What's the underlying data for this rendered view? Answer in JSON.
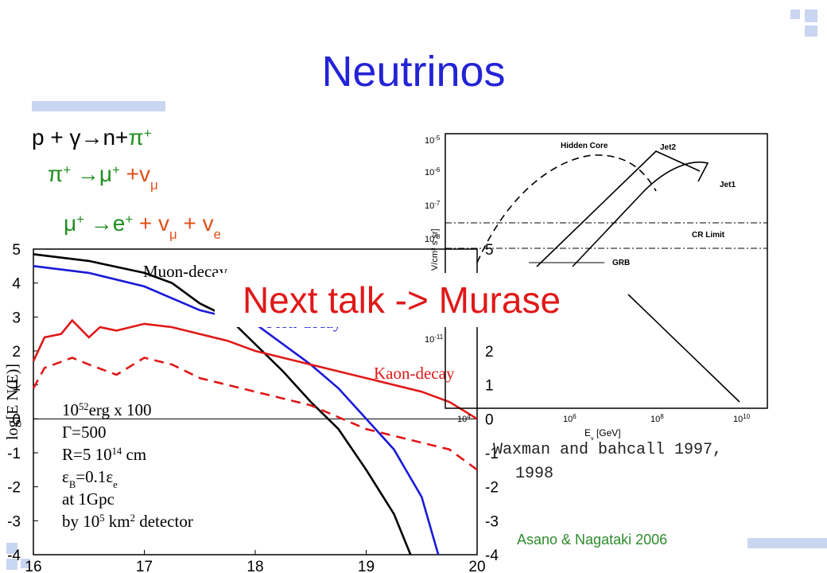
{
  "title": "Neutrinos",
  "equations": [
    [
      {
        "t": "p  + γ→n+",
        "c": "#000000"
      },
      {
        "t": "π",
        "c": "#1f8f1f"
      },
      {
        "t": "+",
        "s": "sup",
        "c": "#1f8f1f"
      }
    ],
    [
      {
        "t": "π",
        "c": "#1f8f1f"
      },
      {
        "t": "+",
        "s": "sup",
        "c": "#1f8f1f"
      },
      {
        "t": " →μ",
        "c": "#1f8f1f"
      },
      {
        "t": "+",
        "s": "sup",
        "c": "#1f8f1f"
      },
      {
        "t": "  +v",
        "c": "#e0501a"
      },
      {
        "t": "μ",
        "s": "sub",
        "c": "#e0501a"
      }
    ],
    [
      {
        "t": "μ",
        "c": "#1f8f1f"
      },
      {
        "t": "+",
        "s": "sup",
        "c": "#1f8f1f"
      },
      {
        "t": " →e",
        "c": "#1f8f1f"
      },
      {
        "t": "+",
        "s": "sup",
        "c": "#1f8f1f"
      },
      {
        "t": "  + v",
        "c": "#e0501a"
      },
      {
        "t": "μ",
        "s": "sub",
        "c": "#e0501a"
      },
      {
        "t": " + v",
        "c": "#e0501a"
      },
      {
        "t": "e",
        "s": "sub",
        "c": "#e0501a"
      }
    ]
  ],
  "notes": {
    "next_talk": "Next talk -> Murase",
    "reference_1": [
      "Waxman and bahcall 1997,",
      "1998"
    ],
    "reference_2": "Asano & Nagataki 2006"
  },
  "inset": {
    "curve_labels": [
      "Hidden Core",
      "Jet2",
      "Jet1",
      "CR Limit",
      "GRB"
    ],
    "x_label": [
      {
        "t": "E"
      },
      {
        "t": "ν",
        "s": "sub"
      },
      {
        "t": " [GeV]"
      }
    ],
    "y_label": "V/cm² s sr]",
    "y_tick_base": "10",
    "y_tick_exps": [
      "-5",
      "-6",
      "-7",
      "-8",
      "-11"
    ],
    "x_tick_base": "10",
    "x_tick_exps": [
      "4",
      "6",
      "8",
      "10"
    ]
  },
  "chart_data": {
    "type": "line",
    "y_label": "log[E N(E)]",
    "xlim": [
      16,
      20
    ],
    "ylim": [
      -4,
      5
    ],
    "xticks": [
      16,
      17,
      18,
      19,
      20
    ],
    "yticks": [
      -4,
      -3,
      -2,
      -1,
      0,
      1,
      2,
      3,
      4,
      5
    ],
    "annotations": [
      [
        {
          "t": "10"
        },
        {
          "t": "52",
          "s": "sup"
        },
        {
          "t": "erg x 100"
        }
      ],
      [
        {
          "t": "Γ=500"
        }
      ],
      [
        {
          "t": "R=5 10"
        },
        {
          "t": "14",
          "s": "sup"
        },
        {
          "t": " cm"
        }
      ],
      [
        {
          "t": "ε"
        },
        {
          "t": "B",
          "s": "sub"
        },
        {
          "t": "=0.1ε"
        },
        {
          "t": "e",
          "s": "sub"
        }
      ],
      [
        {
          "t": "at 1Gpc"
        }
      ],
      [
        {
          "t": "by 10"
        },
        {
          "t": "5",
          "s": "sup"
        },
        {
          "t": " km"
        },
        {
          "t": "2",
          "s": "sup"
        },
        {
          "t": " detector"
        }
      ]
    ],
    "series": [
      {
        "name": "Muon-decay",
        "color": "#000000",
        "dashed": false,
        "x": [
          16,
          16.5,
          17,
          17.25,
          17.5,
          17.75,
          18,
          18.25,
          18.5,
          18.75,
          19,
          19.25,
          19.4
        ],
        "values": [
          4.85,
          4.65,
          4.3,
          4.0,
          3.4,
          3.0,
          2.2,
          1.4,
          0.5,
          -0.3,
          -1.5,
          -2.8,
          -4
        ]
      },
      {
        "name": "Pion-decay",
        "color": "#1a1ad8",
        "dashed": false,
        "x": [
          16,
          16.5,
          17,
          17.5,
          18,
          18.5,
          18.75,
          19,
          19.25,
          19.5,
          19.65
        ],
        "values": [
          4.5,
          4.3,
          3.9,
          3.2,
          2.8,
          1.6,
          0.9,
          0,
          -0.9,
          -2.3,
          -4
        ]
      },
      {
        "name": "Kaon-decay",
        "color": "#e01818",
        "dashed": false,
        "x": [
          16,
          16.1,
          16.25,
          16.35,
          16.5,
          16.6,
          16.75,
          17,
          17.25,
          17.5,
          17.75,
          18,
          18.5,
          19,
          19.5,
          19.75,
          20
        ],
        "values": [
          1.7,
          2.4,
          2.5,
          2.9,
          2.4,
          2.7,
          2.6,
          2.8,
          2.7,
          2.5,
          2.3,
          2.0,
          1.6,
          1.2,
          0.8,
          0.5,
          0
        ]
      },
      {
        "color": "#e01818",
        "dashed": true,
        "x": [
          16,
          16.1,
          16.35,
          16.5,
          16.75,
          17,
          17.25,
          17.5,
          18,
          18.5,
          19,
          19.5,
          19.75,
          20
        ],
        "values": [
          0.9,
          1.5,
          1.8,
          1.6,
          1.3,
          1.8,
          1.6,
          1.2,
          0.8,
          0.4,
          -0.3,
          -0.7,
          -0.9,
          -1.5
        ]
      }
    ]
  }
}
